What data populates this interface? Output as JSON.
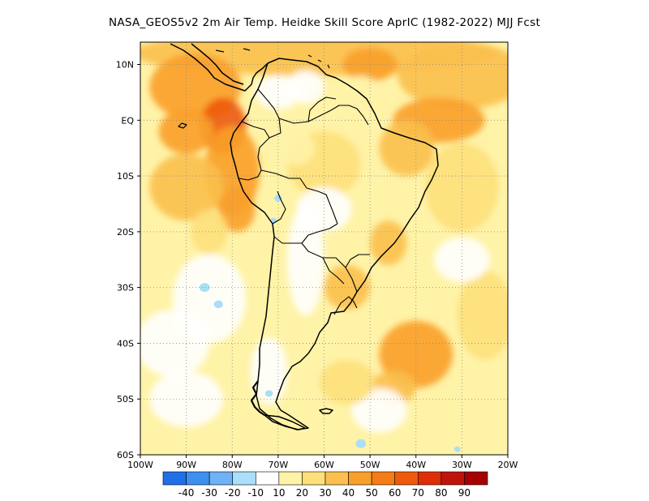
{
  "title": "NASA_GEOS5v2  2m Air Temp. Heidke Skill Score AprIC (1982-2022) MJJ Fcst",
  "map": {
    "lon_range": [
      -100,
      -20
    ],
    "lat_range": [
      -60,
      14
    ],
    "lat_ticks": [
      {
        "value": 10,
        "label": "10N"
      },
      {
        "value": 0,
        "label": "EQ"
      },
      {
        "value": -10,
        "label": "10S"
      },
      {
        "value": -20,
        "label": "20S"
      },
      {
        "value": -30,
        "label": "30S"
      },
      {
        "value": -40,
        "label": "40S"
      },
      {
        "value": -50,
        "label": "50S"
      },
      {
        "value": -60,
        "label": "60S"
      }
    ],
    "lon_ticks": [
      {
        "value": -100,
        "label": "100W"
      },
      {
        "value": -90,
        "label": "90W"
      },
      {
        "value": -80,
        "label": "80W"
      },
      {
        "value": -70,
        "label": "70W"
      },
      {
        "value": -60,
        "label": "60W"
      },
      {
        "value": -50,
        "label": "50W"
      },
      {
        "value": -40,
        "label": "40W"
      },
      {
        "value": -30,
        "label": "30W"
      },
      {
        "value": -20,
        "label": "20W"
      }
    ],
    "grid": "dotted",
    "coastline_color": "#000000"
  },
  "colorbar": {
    "colors": [
      "#1f6fe8",
      "#3d8ff0",
      "#6fb2f5",
      "#a9dff9",
      "#ffffff",
      "#fff3a8",
      "#fde07a",
      "#fbc04e",
      "#f9a02a",
      "#f57c14",
      "#f05a0c",
      "#dd2e08",
      "#c0140a",
      "#a60000"
    ],
    "labels": [
      "-40",
      "-30",
      "-20",
      "-10",
      "10",
      "20",
      "30",
      "40",
      "50",
      "60",
      "70",
      "80",
      "90"
    ]
  },
  "field_blobs": [
    {
      "lon": -62,
      "lat": 12,
      "rx": 40,
      "ry": 4,
      "level": 40
    },
    {
      "lon": -88,
      "lat": 6,
      "rx": 10,
      "ry": 6,
      "level": 50
    },
    {
      "lon": -82,
      "lat": -1,
      "rx": 5,
      "ry": 5,
      "level": 70
    },
    {
      "lon": -90,
      "lat": -2,
      "rx": 6,
      "ry": 4,
      "level": 50
    },
    {
      "lon": -80,
      "lat": -9,
      "rx": 6,
      "ry": 8,
      "level": 50
    },
    {
      "lon": -90,
      "lat": -12,
      "rx": 8,
      "ry": 6,
      "level": 40
    },
    {
      "lon": -79,
      "lat": -16,
      "rx": 4,
      "ry": 4,
      "level": 50
    },
    {
      "lon": -30,
      "lat": 8,
      "rx": 14,
      "ry": 6,
      "level": 40
    },
    {
      "lon": -35,
      "lat": 0,
      "rx": 10,
      "ry": 4,
      "level": 50
    },
    {
      "lon": -42,
      "lat": -5,
      "rx": 6,
      "ry": 5,
      "level": 40
    },
    {
      "lon": -50,
      "lat": 10,
      "rx": 6,
      "ry": 3,
      "level": 50
    },
    {
      "lon": -46,
      "lat": -22,
      "rx": 4,
      "ry": 4,
      "level": 40
    },
    {
      "lon": -40,
      "lat": -42,
      "rx": 8,
      "ry": 6,
      "level": 50
    },
    {
      "lon": -45,
      "lat": -48,
      "rx": 5,
      "ry": 3,
      "level": 40
    },
    {
      "lon": -30,
      "lat": -12,
      "rx": 8,
      "ry": 8,
      "level": 30
    },
    {
      "lon": -25,
      "lat": -35,
      "rx": 6,
      "ry": 8,
      "level": 30
    },
    {
      "lon": -55,
      "lat": -30,
      "rx": 5,
      "ry": 4,
      "level": 40
    },
    {
      "lon": -60,
      "lat": -8,
      "rx": 8,
      "ry": 6,
      "level": 30
    },
    {
      "lon": -66,
      "lat": -5,
      "rx": 4,
      "ry": 3,
      "level": 20
    },
    {
      "lon": -70,
      "lat": 5,
      "rx": 5,
      "ry": 3,
      "level": 10
    },
    {
      "lon": -64,
      "lat": 6,
      "rx": 4,
      "ry": 3,
      "level": 10
    },
    {
      "lon": -52,
      "lat": 5,
      "rx": 4,
      "ry": 3,
      "level": 20
    },
    {
      "lon": -60,
      "lat": -16,
      "rx": 6,
      "ry": 4,
      "level": 10
    },
    {
      "lon": -64,
      "lat": -25,
      "rx": 4,
      "ry": 10,
      "level": 10
    },
    {
      "lon": -72,
      "lat": -45,
      "rx": 4,
      "ry": 6,
      "level": 10
    },
    {
      "lon": -85,
      "lat": -32,
      "rx": 8,
      "ry": 8,
      "level": 10
    },
    {
      "lon": -93,
      "lat": -40,
      "rx": 8,
      "ry": 6,
      "level": 10
    },
    {
      "lon": -90,
      "lat": -50,
      "rx": 8,
      "ry": 5,
      "level": 10
    },
    {
      "lon": -48,
      "lat": -52,
      "rx": 6,
      "ry": 4,
      "level": 10
    },
    {
      "lon": -30,
      "lat": -25,
      "rx": 6,
      "ry": 4,
      "level": 10
    },
    {
      "lon": -85,
      "lat": -20,
      "rx": 4,
      "ry": 4,
      "level": 30
    },
    {
      "lon": -55,
      "lat": -47,
      "rx": 6,
      "ry": 4,
      "level": 30
    }
  ],
  "negative_spots": [
    {
      "lon": -70,
      "lat": -14,
      "r": 0.6
    },
    {
      "lon": -71,
      "lat": -18,
      "r": 0.5
    },
    {
      "lon": -86,
      "lat": -30,
      "r": 0.8
    },
    {
      "lon": -83,
      "lat": -33,
      "r": 0.7
    },
    {
      "lon": -72,
      "lat": -49,
      "r": 0.6
    },
    {
      "lon": -52,
      "lat": -58,
      "r": 0.8
    },
    {
      "lon": -31,
      "lat": -59,
      "r": 0.5
    }
  ]
}
